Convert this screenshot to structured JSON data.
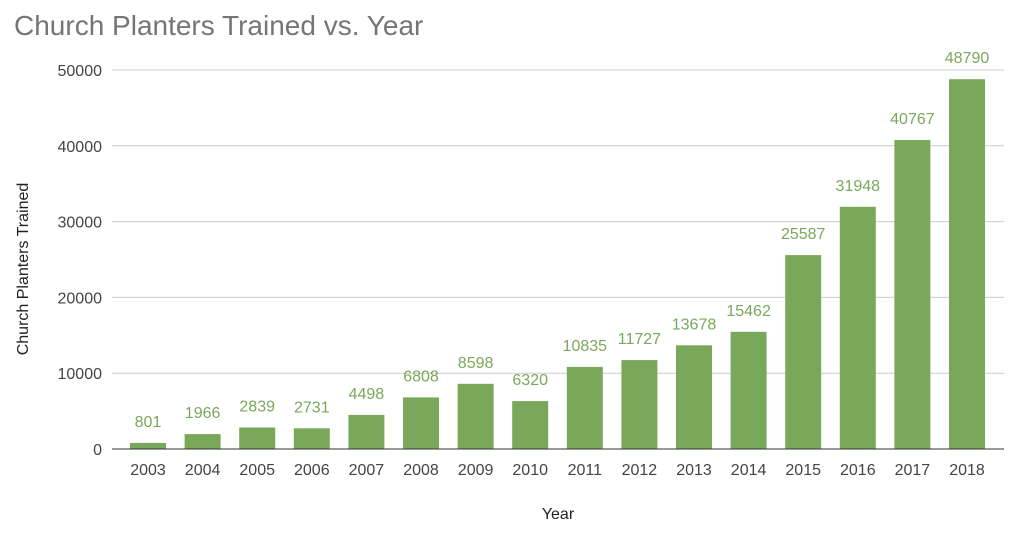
{
  "chart_data": {
    "type": "bar",
    "title": "Church Planters Trained vs. Year",
    "xlabel": "Year",
    "ylabel": "Church Planters Trained",
    "categories": [
      "2003",
      "2004",
      "2005",
      "2006",
      "2007",
      "2008",
      "2009",
      "2010",
      "2011",
      "2012",
      "2013",
      "2014",
      "2015",
      "2016",
      "2017",
      "2018"
    ],
    "values": [
      801,
      1966,
      2839,
      2731,
      4498,
      6808,
      8598,
      6320,
      10835,
      11727,
      13678,
      15462,
      25587,
      31948,
      40767,
      48790
    ],
    "ylim": [
      0,
      50000
    ],
    "yticks": [
      "0",
      "10000",
      "20000",
      "30000",
      "40000",
      "50000"
    ],
    "grid": true,
    "bar_color": "#79a85a",
    "label_color": "#79a85a"
  }
}
